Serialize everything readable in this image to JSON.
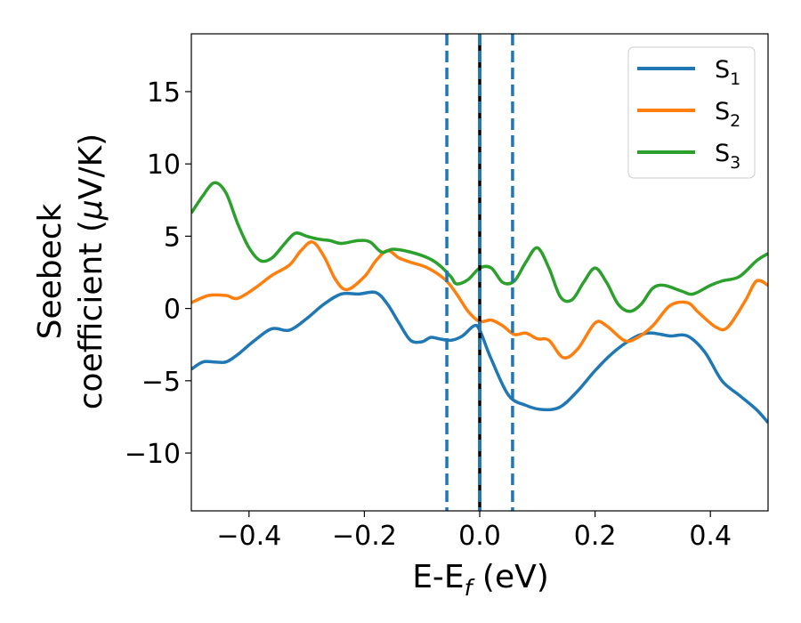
{
  "chart_data": {
    "type": "line",
    "title": "",
    "xlabel": {
      "base": "E-E",
      "sub": "f",
      "tail": " (eV)"
    },
    "ylabel": {
      "line1": "Seebeck",
      "line2": "coefficient  (",
      "mu": "μ",
      "unit": "V/K)"
    },
    "xlim": [
      -0.5,
      0.5
    ],
    "ylim": [
      -14.0,
      19.0
    ],
    "x_ticks": [
      {
        "value": -0.4,
        "label": "−0.4"
      },
      {
        "value": -0.2,
        "label": "−0.2"
      },
      {
        "value": 0.0,
        "label": "0.0"
      },
      {
        "value": 0.2,
        "label": "0.2"
      },
      {
        "value": 0.4,
        "label": "0.4"
      }
    ],
    "y_ticks": [
      {
        "value": -10,
        "label": "−10"
      },
      {
        "value": -5,
        "label": "−5"
      },
      {
        "value": 0,
        "label": "0"
      },
      {
        "value": 5,
        "label": "5"
      },
      {
        "value": 10,
        "label": "10"
      },
      {
        "value": 15,
        "label": "15"
      }
    ],
    "legend_position": "top-right",
    "vertical_lines": [
      {
        "x": -0.057,
        "style": "dashed",
        "color": "#1f77b4"
      },
      {
        "x": 0.0,
        "style": "solid",
        "color": "#000000"
      },
      {
        "x": 0.0,
        "style": "dashed",
        "color": "#1f77b4"
      },
      {
        "x": 0.057,
        "style": "dashed",
        "color": "#1f77b4"
      }
    ],
    "series": [
      {
        "name": "S",
        "sub": "1",
        "color": "#1f77b4",
        "points": [
          [
            -0.5,
            -4.2
          ],
          [
            -0.48,
            -3.7
          ],
          [
            -0.46,
            -3.7
          ],
          [
            -0.44,
            -3.7
          ],
          [
            -0.42,
            -3.2
          ],
          [
            -0.39,
            -2.2
          ],
          [
            -0.36,
            -1.4
          ],
          [
            -0.33,
            -1.5
          ],
          [
            -0.3,
            -0.7
          ],
          [
            -0.27,
            0.3
          ],
          [
            -0.24,
            1.0
          ],
          [
            -0.21,
            1.0
          ],
          [
            -0.18,
            1.1
          ],
          [
            -0.16,
            0.3
          ],
          [
            -0.14,
            -1.0
          ],
          [
            -0.12,
            -2.2
          ],
          [
            -0.1,
            -2.3
          ],
          [
            -0.085,
            -2.0
          ],
          [
            -0.07,
            -2.1
          ],
          [
            -0.05,
            -2.2
          ],
          [
            -0.03,
            -1.9
          ],
          [
            -0.01,
            -1.2
          ],
          [
            0.0,
            -1.5
          ],
          [
            0.02,
            -3.5
          ],
          [
            0.05,
            -6.0
          ],
          [
            0.08,
            -6.7
          ],
          [
            0.11,
            -7.0
          ],
          [
            0.14,
            -6.8
          ],
          [
            0.17,
            -5.7
          ],
          [
            0.2,
            -4.3
          ],
          [
            0.23,
            -3.1
          ],
          [
            0.26,
            -2.2
          ],
          [
            0.28,
            -1.8
          ],
          [
            0.3,
            -1.7
          ],
          [
            0.33,
            -1.9
          ],
          [
            0.36,
            -1.9
          ],
          [
            0.39,
            -3.0
          ],
          [
            0.42,
            -5.0
          ],
          [
            0.45,
            -6.0
          ],
          [
            0.48,
            -7.0
          ],
          [
            0.5,
            -7.9
          ]
        ]
      },
      {
        "name": "S",
        "sub": "2",
        "color": "#ff7f0e",
        "points": [
          [
            -0.5,
            0.4
          ],
          [
            -0.47,
            0.9
          ],
          [
            -0.44,
            0.9
          ],
          [
            -0.42,
            0.7
          ],
          [
            -0.39,
            1.4
          ],
          [
            -0.36,
            2.3
          ],
          [
            -0.33,
            3.0
          ],
          [
            -0.31,
            4.0
          ],
          [
            -0.29,
            4.6
          ],
          [
            -0.27,
            3.6
          ],
          [
            -0.25,
            2.0
          ],
          [
            -0.23,
            1.3
          ],
          [
            -0.2,
            2.2
          ],
          [
            -0.18,
            3.3
          ],
          [
            -0.16,
            4.0
          ],
          [
            -0.14,
            3.5
          ],
          [
            -0.12,
            3.2
          ],
          [
            -0.09,
            2.8
          ],
          [
            -0.06,
            2.0
          ],
          [
            -0.04,
            1.0
          ],
          [
            -0.02,
            -0.2
          ],
          [
            0.0,
            -0.9
          ],
          [
            0.02,
            -0.8
          ],
          [
            0.04,
            -1.2
          ],
          [
            0.06,
            -1.8
          ],
          [
            0.08,
            -1.7
          ],
          [
            0.1,
            -2.1
          ],
          [
            0.12,
            -2.2
          ],
          [
            0.145,
            -3.4
          ],
          [
            0.17,
            -2.8
          ],
          [
            0.2,
            -1.0
          ],
          [
            0.22,
            -1.2
          ],
          [
            0.25,
            -2.2
          ],
          [
            0.27,
            -2.1
          ],
          [
            0.3,
            -1.2
          ],
          [
            0.33,
            0.2
          ],
          [
            0.36,
            0.4
          ],
          [
            0.38,
            -0.3
          ],
          [
            0.41,
            -1.3
          ],
          [
            0.43,
            -1.3
          ],
          [
            0.46,
            0.5
          ],
          [
            0.48,
            1.9
          ],
          [
            0.5,
            1.6
          ]
        ]
      },
      {
        "name": "S",
        "sub": "3",
        "color": "#2ca02c",
        "points": [
          [
            -0.5,
            6.6
          ],
          [
            -0.48,
            7.8
          ],
          [
            -0.46,
            8.7
          ],
          [
            -0.44,
            8.0
          ],
          [
            -0.42,
            5.9
          ],
          [
            -0.4,
            4.2
          ],
          [
            -0.38,
            3.3
          ],
          [
            -0.36,
            3.5
          ],
          [
            -0.34,
            4.4
          ],
          [
            -0.32,
            5.2
          ],
          [
            -0.3,
            5.0
          ],
          [
            -0.28,
            4.8
          ],
          [
            -0.26,
            4.7
          ],
          [
            -0.24,
            4.5
          ],
          [
            -0.21,
            4.7
          ],
          [
            -0.19,
            4.6
          ],
          [
            -0.17,
            3.9
          ],
          [
            -0.15,
            4.1
          ],
          [
            -0.12,
            3.9
          ],
          [
            -0.09,
            3.5
          ],
          [
            -0.07,
            3.0
          ],
          [
            -0.05,
            2.2
          ],
          [
            -0.04,
            1.7
          ],
          [
            -0.02,
            2.0
          ],
          [
            0.0,
            2.8
          ],
          [
            0.02,
            2.8
          ],
          [
            0.04,
            1.8
          ],
          [
            0.06,
            1.9
          ],
          [
            0.08,
            3.2
          ],
          [
            0.1,
            4.2
          ],
          [
            0.12,
            2.8
          ],
          [
            0.14,
            0.8
          ],
          [
            0.16,
            0.6
          ],
          [
            0.18,
            1.8
          ],
          [
            0.2,
            2.8
          ],
          [
            0.22,
            1.8
          ],
          [
            0.24,
            0.3
          ],
          [
            0.26,
            -0.2
          ],
          [
            0.28,
            0.3
          ],
          [
            0.3,
            1.4
          ],
          [
            0.32,
            1.6
          ],
          [
            0.35,
            1.2
          ],
          [
            0.37,
            1.0
          ],
          [
            0.4,
            1.6
          ],
          [
            0.42,
            1.9
          ],
          [
            0.45,
            2.2
          ],
          [
            0.48,
            3.3
          ],
          [
            0.5,
            3.8
          ]
        ]
      }
    ]
  }
}
